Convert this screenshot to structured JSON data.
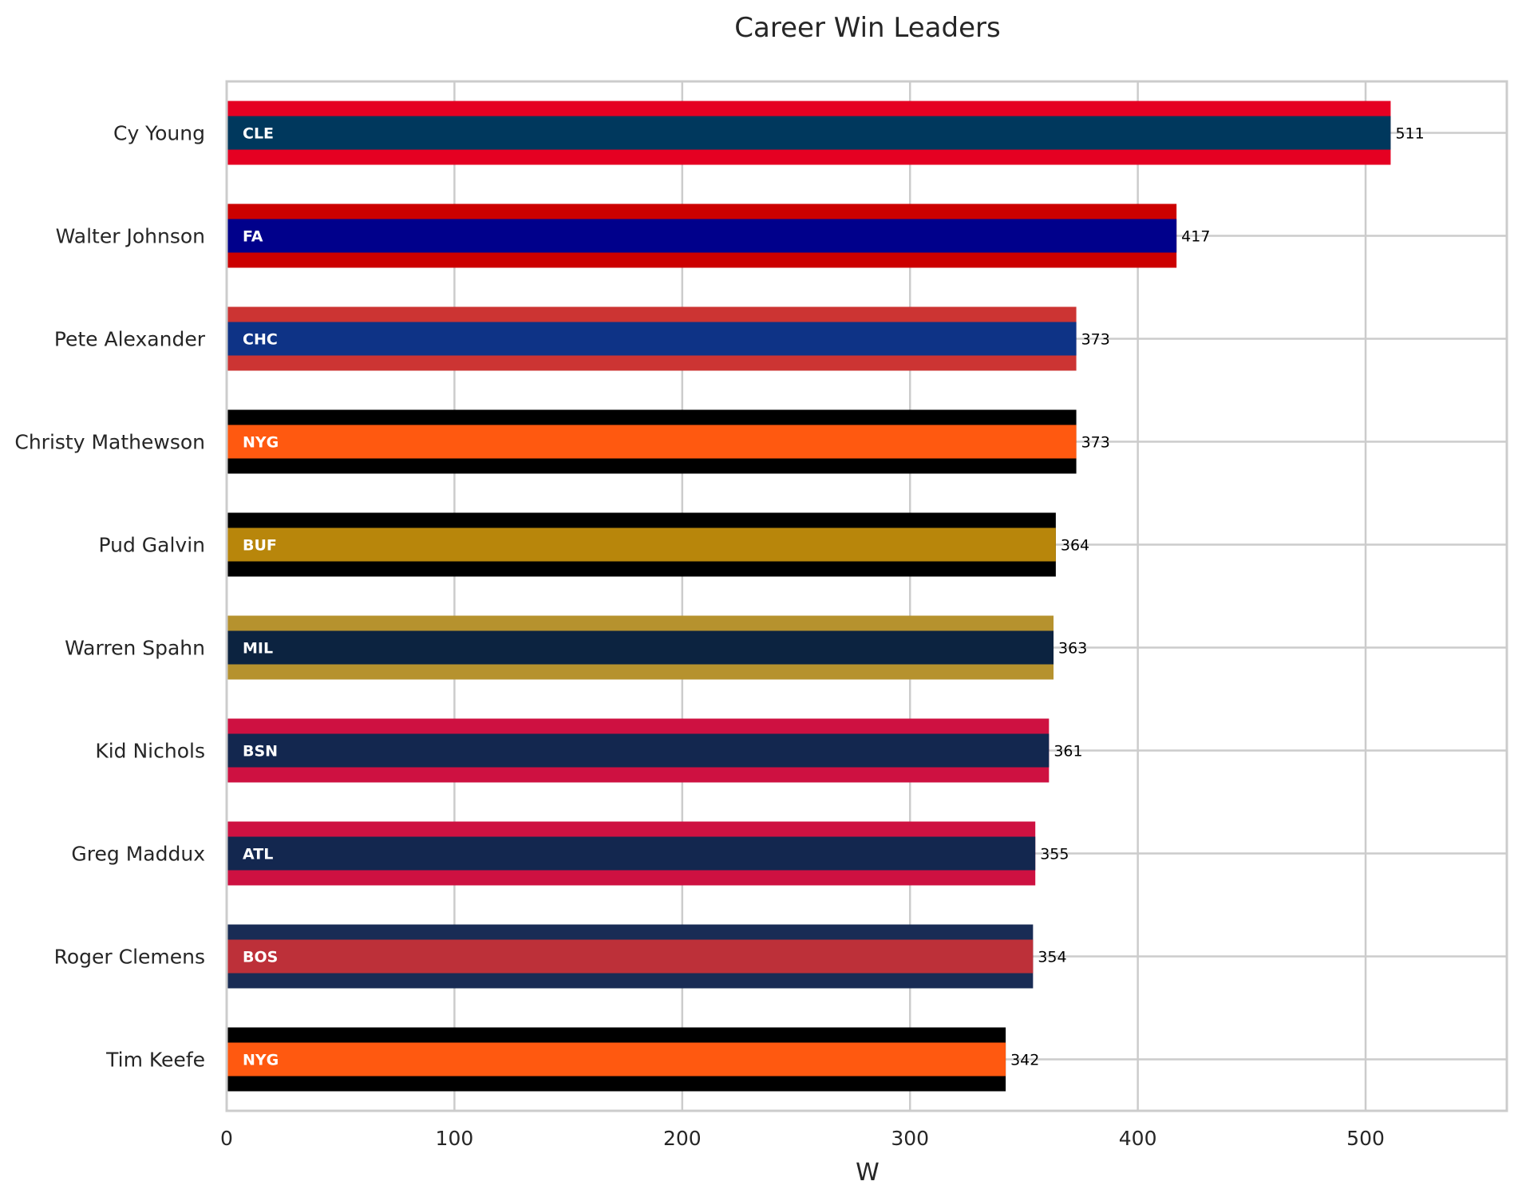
{
  "chart_data": {
    "type": "bar",
    "orientation": "horizontal",
    "title": "Career Win Leaders",
    "xlabel": "W",
    "ylabel": "",
    "xlim": [
      0,
      562
    ],
    "xticks": [
      0,
      100,
      200,
      300,
      400,
      500
    ],
    "grid": true,
    "categories": [
      "Cy Young",
      "Walter Johnson",
      "Pete Alexander",
      "Christy Mathewson",
      "Pud Galvin",
      "Warren Spahn",
      "Kid Nichols",
      "Greg Maddux",
      "Roger Clemens",
      "Tim Keefe"
    ],
    "values": [
      511,
      417,
      373,
      373,
      364,
      363,
      361,
      355,
      354,
      342
    ],
    "teams": [
      "CLE",
      "FA",
      "CHC",
      "NYG",
      "BUF",
      "MIL",
      "BSN",
      "ATL",
      "BOS",
      "NYG"
    ],
    "primary_colors": [
      "#00385D",
      "#00008B",
      "#0E3386",
      "#FF5910",
      "#B8860B",
      "#0C2340",
      "#13274F",
      "#13274F",
      "#BD3039",
      "#FF5910"
    ],
    "secondary_colors": [
      "#E50022",
      "#CC0000",
      "#CC3433",
      "#000000",
      "#000000",
      "#B6922E",
      "#CE1141",
      "#CE1141",
      "#192C55",
      "#000000"
    ]
  }
}
